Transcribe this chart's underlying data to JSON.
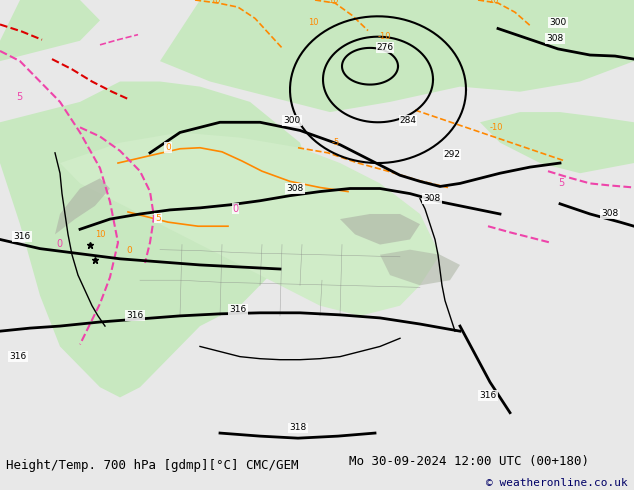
{
  "title_left": "Height/Temp. 700 hPa [gdmp][°C] CMC/GEM",
  "title_right": "Mo 30-09-2024 12:00 UTC (00+180)",
  "copyright": "© weatheronline.co.uk",
  "bg_color": "#e8e8e8",
  "map_bg": "#ffffff",
  "bottom_bar_color": "#d8d8e8",
  "text_color": "#000000",
  "copyright_color": "#000066",
  "title_font_size": 9,
  "copyright_font_size": 8,
  "figsize": [
    6.34,
    4.9
  ],
  "dpi": 100
}
